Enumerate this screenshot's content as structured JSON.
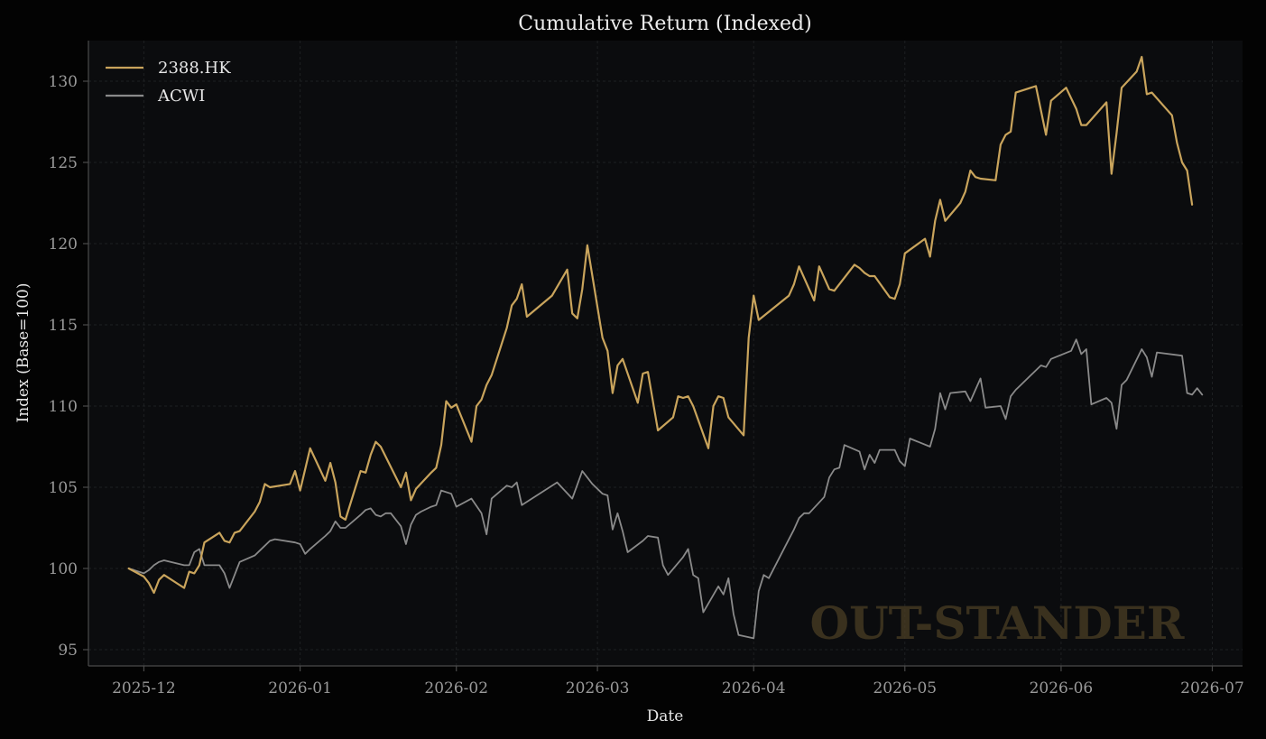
{
  "chart_data": {
    "type": "line",
    "title": "Cumulative Return (Indexed)",
    "xlabel": "Date",
    "ylabel": "Index (Base=100)",
    "ylim": [
      94,
      132.5
    ],
    "xlim": [
      "2025-11-20",
      "2026-07-07"
    ],
    "y_ticks": [
      95,
      100,
      105,
      110,
      115,
      120,
      125,
      130
    ],
    "x_ticks": [
      "2025-12-01",
      "2026-01-01",
      "2026-02-01",
      "2026-03-01",
      "2026-04-01",
      "2026-05-01",
      "2026-06-01",
      "2026-07-01"
    ],
    "x_tick_labels": [
      "2025-12",
      "2026-01",
      "2026-02",
      "2026-03",
      "2026-04",
      "2026-05",
      "2026-06",
      "2026-07"
    ],
    "grid": true,
    "legend": "top-left",
    "watermark": "OUT-STANDER",
    "series": [
      {
        "name": "2388.HK",
        "color": "#c9a45c",
        "points": [
          [
            "2025-11-28",
            100.0
          ],
          [
            "2025-12-01",
            99.5
          ],
          [
            "2025-12-02",
            99.1
          ],
          [
            "2025-12-03",
            98.5
          ],
          [
            "2025-12-04",
            99.3
          ],
          [
            "2025-12-05",
            99.6
          ],
          [
            "2025-12-08",
            99.0
          ],
          [
            "2025-12-09",
            98.8
          ],
          [
            "2025-12-10",
            99.8
          ],
          [
            "2025-12-11",
            99.7
          ],
          [
            "2025-12-12",
            100.2
          ],
          [
            "2025-12-13",
            101.6
          ],
          [
            "2025-12-16",
            102.2
          ],
          [
            "2025-12-17",
            101.7
          ],
          [
            "2025-12-18",
            101.6
          ],
          [
            "2025-12-19",
            102.2
          ],
          [
            "2025-12-20",
            102.3
          ],
          [
            "2025-12-23",
            103.5
          ],
          [
            "2025-12-24",
            104.1
          ],
          [
            "2025-12-25",
            105.2
          ],
          [
            "2025-12-26",
            105.0
          ],
          [
            "2025-12-30",
            105.2
          ],
          [
            "2025-12-31",
            106.0
          ],
          [
            "2026-01-01",
            104.8
          ],
          [
            "2026-01-03",
            107.4
          ],
          [
            "2026-01-06",
            105.4
          ],
          [
            "2026-01-07",
            106.5
          ],
          [
            "2026-01-08",
            105.3
          ],
          [
            "2026-01-09",
            103.2
          ],
          [
            "2026-01-10",
            103.0
          ],
          [
            "2026-01-13",
            106.0
          ],
          [
            "2026-01-14",
            105.9
          ],
          [
            "2026-01-15",
            107.0
          ],
          [
            "2026-01-16",
            107.8
          ],
          [
            "2026-01-17",
            107.5
          ],
          [
            "2026-01-21",
            105.0
          ],
          [
            "2026-01-22",
            105.9
          ],
          [
            "2026-01-23",
            104.2
          ],
          [
            "2026-01-24",
            104.9
          ],
          [
            "2026-01-27",
            105.9
          ],
          [
            "2026-01-28",
            106.2
          ],
          [
            "2026-01-29",
            107.6
          ],
          [
            "2026-01-30",
            110.3
          ],
          [
            "2026-01-31",
            109.9
          ],
          [
            "2026-02-01",
            110.1
          ],
          [
            "2026-02-04",
            107.8
          ],
          [
            "2026-02-05",
            110.0
          ],
          [
            "2026-02-06",
            110.4
          ],
          [
            "2026-02-07",
            111.3
          ],
          [
            "2026-02-08",
            111.9
          ],
          [
            "2026-02-11",
            114.8
          ],
          [
            "2026-02-12",
            116.2
          ],
          [
            "2026-02-13",
            116.6
          ],
          [
            "2026-02-14",
            117.5
          ],
          [
            "2026-02-15",
            115.5
          ],
          [
            "2026-02-20",
            116.8
          ],
          [
            "2026-02-23",
            118.4
          ],
          [
            "2026-02-24",
            115.7
          ],
          [
            "2026-02-25",
            115.4
          ],
          [
            "2026-02-26",
            117.2
          ],
          [
            "2026-02-27",
            119.9
          ],
          [
            "2026-03-02",
            114.2
          ],
          [
            "2026-03-03",
            113.4
          ],
          [
            "2026-03-04",
            110.8
          ],
          [
            "2026-03-05",
            112.5
          ],
          [
            "2026-03-06",
            112.9
          ],
          [
            "2026-03-09",
            110.2
          ],
          [
            "2026-03-10",
            112.0
          ],
          [
            "2026-03-11",
            112.1
          ],
          [
            "2026-03-13",
            108.5
          ],
          [
            "2026-03-16",
            109.3
          ],
          [
            "2026-03-17",
            110.6
          ],
          [
            "2026-03-18",
            110.5
          ],
          [
            "2026-03-19",
            110.6
          ],
          [
            "2026-03-20",
            110.0
          ],
          [
            "2026-03-23",
            107.4
          ],
          [
            "2026-03-24",
            110.0
          ],
          [
            "2026-03-25",
            110.6
          ],
          [
            "2026-03-26",
            110.5
          ],
          [
            "2026-03-27",
            109.3
          ],
          [
            "2026-03-30",
            108.2
          ],
          [
            "2026-03-31",
            114.2
          ],
          [
            "2026-04-01",
            116.8
          ],
          [
            "2026-04-02",
            115.3
          ],
          [
            "2026-04-08",
            116.8
          ],
          [
            "2026-04-09",
            117.5
          ],
          [
            "2026-04-10",
            118.6
          ],
          [
            "2026-04-13",
            116.5
          ],
          [
            "2026-04-14",
            118.6
          ],
          [
            "2026-04-16",
            117.2
          ],
          [
            "2026-04-17",
            117.1
          ],
          [
            "2026-04-21",
            118.7
          ],
          [
            "2026-04-22",
            118.5
          ],
          [
            "2026-04-23",
            118.2
          ],
          [
            "2026-04-24",
            118.0
          ],
          [
            "2026-04-25",
            118.0
          ],
          [
            "2026-04-28",
            116.7
          ],
          [
            "2026-04-29",
            116.6
          ],
          [
            "2026-04-30",
            117.5
          ],
          [
            "2026-05-01",
            119.4
          ],
          [
            "2026-05-05",
            120.3
          ],
          [
            "2026-05-06",
            119.2
          ],
          [
            "2026-05-07",
            121.4
          ],
          [
            "2026-05-08",
            122.7
          ],
          [
            "2026-05-09",
            121.4
          ],
          [
            "2026-05-12",
            122.5
          ],
          [
            "2026-05-13",
            123.2
          ],
          [
            "2026-05-14",
            124.5
          ],
          [
            "2026-05-15",
            124.1
          ],
          [
            "2026-05-16",
            124.0
          ],
          [
            "2026-05-19",
            123.9
          ],
          [
            "2026-05-20",
            126.1
          ],
          [
            "2026-05-21",
            126.7
          ],
          [
            "2026-05-22",
            126.9
          ],
          [
            "2026-05-23",
            129.3
          ],
          [
            "2026-05-27",
            129.7
          ],
          [
            "2026-05-29",
            126.7
          ],
          [
            "2026-05-30",
            128.8
          ],
          [
            "2026-06-02",
            129.6
          ],
          [
            "2026-06-04",
            128.3
          ],
          [
            "2026-06-05",
            127.3
          ],
          [
            "2026-06-06",
            127.3
          ],
          [
            "2026-06-10",
            128.7
          ],
          [
            "2026-06-11",
            124.3
          ],
          [
            "2026-06-12",
            126.8
          ],
          [
            "2026-06-13",
            129.6
          ],
          [
            "2026-06-16",
            130.6
          ],
          [
            "2026-06-17",
            131.5
          ],
          [
            "2026-06-18",
            129.2
          ],
          [
            "2026-06-19",
            129.3
          ],
          [
            "2026-06-23",
            127.9
          ],
          [
            "2026-06-24",
            126.2
          ],
          [
            "2026-06-25",
            125.0
          ],
          [
            "2026-06-26",
            124.5
          ],
          [
            "2026-06-27",
            122.4
          ]
        ]
      },
      {
        "name": "ACWI",
        "color": "#8a8a8a",
        "points": [
          [
            "2025-11-28",
            100.0
          ],
          [
            "2025-12-01",
            99.7
          ],
          [
            "2025-12-02",
            99.9
          ],
          [
            "2025-12-03",
            100.2
          ],
          [
            "2025-12-04",
            100.4
          ],
          [
            "2025-12-05",
            100.5
          ],
          [
            "2025-12-09",
            100.2
          ],
          [
            "2025-12-10",
            100.2
          ],
          [
            "2025-12-11",
            101.0
          ],
          [
            "2025-12-12",
            101.2
          ],
          [
            "2025-12-13",
            100.2
          ],
          [
            "2025-12-16",
            100.2
          ],
          [
            "2025-12-17",
            99.7
          ],
          [
            "2025-12-18",
            98.8
          ],
          [
            "2025-12-20",
            100.4
          ],
          [
            "2025-12-23",
            100.8
          ],
          [
            "2025-12-24",
            101.1
          ],
          [
            "2025-12-26",
            101.7
          ],
          [
            "2025-12-27",
            101.8
          ],
          [
            "2025-12-31",
            101.6
          ],
          [
            "2026-01-01",
            101.5
          ],
          [
            "2026-01-02",
            100.9
          ],
          [
            "2026-01-03",
            101.2
          ],
          [
            "2026-01-06",
            102.0
          ],
          [
            "2026-01-07",
            102.3
          ],
          [
            "2026-01-08",
            102.9
          ],
          [
            "2026-01-09",
            102.5
          ],
          [
            "2026-01-10",
            102.5
          ],
          [
            "2026-01-13",
            103.3
          ],
          [
            "2026-01-14",
            103.6
          ],
          [
            "2026-01-15",
            103.7
          ],
          [
            "2026-01-16",
            103.3
          ],
          [
            "2026-01-17",
            103.2
          ],
          [
            "2026-01-18",
            103.4
          ],
          [
            "2026-01-19",
            103.4
          ],
          [
            "2026-01-21",
            102.6
          ],
          [
            "2026-01-22",
            101.5
          ],
          [
            "2026-01-23",
            102.7
          ],
          [
            "2026-01-24",
            103.3
          ],
          [
            "2026-01-25",
            103.5
          ],
          [
            "2026-01-27",
            103.8
          ],
          [
            "2026-01-28",
            103.9
          ],
          [
            "2026-01-29",
            104.8
          ],
          [
            "2026-01-31",
            104.6
          ],
          [
            "2026-02-01",
            103.8
          ],
          [
            "2026-02-04",
            104.3
          ],
          [
            "2026-02-06",
            103.4
          ],
          [
            "2026-02-07",
            102.1
          ],
          [
            "2026-02-08",
            104.3
          ],
          [
            "2026-02-11",
            105.1
          ],
          [
            "2026-02-12",
            105.0
          ],
          [
            "2026-02-13",
            105.3
          ],
          [
            "2026-02-14",
            103.9
          ],
          [
            "2026-02-21",
            105.3
          ],
          [
            "2026-02-24",
            104.3
          ],
          [
            "2026-02-26",
            106.0
          ],
          [
            "2026-02-27",
            105.6
          ],
          [
            "2026-02-28",
            105.2
          ],
          [
            "2026-03-02",
            104.6
          ],
          [
            "2026-03-03",
            104.5
          ],
          [
            "2026-03-04",
            102.4
          ],
          [
            "2026-03-05",
            103.4
          ],
          [
            "2026-03-06",
            102.3
          ],
          [
            "2026-03-07",
            101.0
          ],
          [
            "2026-03-10",
            101.7
          ],
          [
            "2026-03-11",
            102.0
          ],
          [
            "2026-03-13",
            101.9
          ],
          [
            "2026-03-14",
            100.2
          ],
          [
            "2026-03-15",
            99.6
          ],
          [
            "2026-03-18",
            100.7
          ],
          [
            "2026-03-19",
            101.2
          ],
          [
            "2026-03-20",
            99.6
          ],
          [
            "2026-03-21",
            99.4
          ],
          [
            "2026-03-22",
            97.3
          ],
          [
            "2026-03-25",
            98.9
          ],
          [
            "2026-03-26",
            98.4
          ],
          [
            "2026-03-27",
            99.4
          ],
          [
            "2026-03-28",
            97.2
          ],
          [
            "2026-03-29",
            95.9
          ],
          [
            "2026-04-01",
            95.7
          ],
          [
            "2026-04-02",
            98.6
          ],
          [
            "2026-04-03",
            99.6
          ],
          [
            "2026-04-04",
            99.4
          ],
          [
            "2026-04-08",
            101.8
          ],
          [
            "2026-04-09",
            102.4
          ],
          [
            "2026-04-10",
            103.1
          ],
          [
            "2026-04-11",
            103.4
          ],
          [
            "2026-04-12",
            103.4
          ],
          [
            "2026-04-15",
            104.4
          ],
          [
            "2026-04-16",
            105.6
          ],
          [
            "2026-04-17",
            106.1
          ],
          [
            "2026-04-18",
            106.2
          ],
          [
            "2026-04-19",
            107.6
          ],
          [
            "2026-04-22",
            107.2
          ],
          [
            "2026-04-23",
            106.1
          ],
          [
            "2026-04-24",
            107.0
          ],
          [
            "2026-04-25",
            106.5
          ],
          [
            "2026-04-26",
            107.3
          ],
          [
            "2026-04-29",
            107.3
          ],
          [
            "2026-04-30",
            106.6
          ],
          [
            "2026-05-01",
            106.3
          ],
          [
            "2026-05-02",
            108.0
          ],
          [
            "2026-05-06",
            107.5
          ],
          [
            "2026-05-07",
            108.6
          ],
          [
            "2026-05-08",
            110.8
          ],
          [
            "2026-05-09",
            109.8
          ],
          [
            "2026-05-10",
            110.8
          ],
          [
            "2026-05-13",
            110.9
          ],
          [
            "2026-05-14",
            110.3
          ],
          [
            "2026-05-16",
            111.7
          ],
          [
            "2026-05-17",
            109.9
          ],
          [
            "2026-05-20",
            110.0
          ],
          [
            "2026-05-21",
            109.2
          ],
          [
            "2026-05-22",
            110.6
          ],
          [
            "2026-05-23",
            111.0
          ],
          [
            "2026-05-24",
            111.3
          ],
          [
            "2026-05-28",
            112.5
          ],
          [
            "2026-05-29",
            112.4
          ],
          [
            "2026-05-30",
            112.9
          ],
          [
            "2026-06-03",
            113.4
          ],
          [
            "2026-06-04",
            114.1
          ],
          [
            "2026-06-05",
            113.2
          ],
          [
            "2026-06-06",
            113.5
          ],
          [
            "2026-06-07",
            110.1
          ],
          [
            "2026-06-10",
            110.5
          ],
          [
            "2026-06-11",
            110.2
          ],
          [
            "2026-06-12",
            108.6
          ],
          [
            "2026-06-13",
            111.3
          ],
          [
            "2026-06-14",
            111.6
          ],
          [
            "2026-06-17",
            113.5
          ],
          [
            "2026-06-18",
            113.0
          ],
          [
            "2026-06-19",
            111.8
          ],
          [
            "2026-06-20",
            113.3
          ],
          [
            "2026-06-25",
            113.1
          ],
          [
            "2026-06-26",
            110.8
          ],
          [
            "2026-06-27",
            110.7
          ],
          [
            "2026-06-28",
            111.1
          ],
          [
            "2026-06-29",
            110.7
          ]
        ]
      }
    ]
  }
}
